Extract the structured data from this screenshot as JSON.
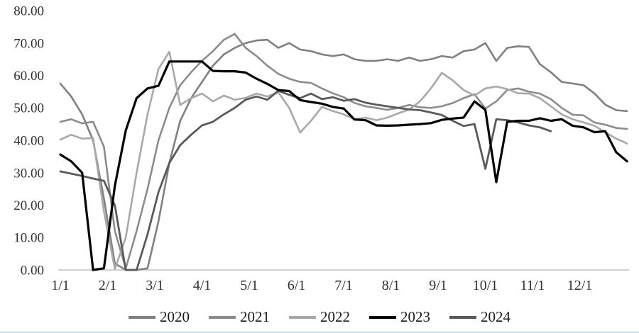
{
  "chart_data": {
    "type": "line",
    "title": "",
    "xlabel": "",
    "ylabel": "",
    "ylim": [
      0,
      80
    ],
    "y_tick_step": 10,
    "grid": "none",
    "axis_baseline_color": "#c0c0c0",
    "legend_position": "bottom",
    "x_frequency": "weekly",
    "x_range": [
      "1/1",
      "12/31"
    ],
    "y_tick_labels": [
      "80.00",
      "70.00",
      "60.00",
      "50.00",
      "40.00",
      "30.00",
      "20.00",
      "10.00",
      "0.00"
    ],
    "x_tick_labels": [
      "1/1",
      "2/1",
      "3/1",
      "4/1",
      "5/1",
      "6/1",
      "7/1",
      "8/1",
      "9/1",
      "10/1",
      "11/1",
      "12/1"
    ],
    "series": [
      {
        "name": "2020",
        "color": "#808080",
        "stroke_width": 2.6,
        "values": [
          57.5,
          53.5,
          48,
          40,
          22,
          2,
          0,
          0,
          0.5,
          15,
          33,
          46,
          53,
          58,
          63,
          66.5,
          68.5,
          70,
          70.8,
          71,
          68.5,
          70,
          68,
          67.5,
          66.5,
          66,
          66.5,
          65,
          64.5,
          64.5,
          65,
          64.5,
          65.5,
          64.5,
          65,
          66,
          65.5,
          67.5,
          68,
          70,
          64.5,
          68.5,
          69,
          68.8,
          63.5,
          61,
          58,
          57.5,
          57,
          54.5,
          51,
          49.3,
          49
        ]
      },
      {
        "name": "2021",
        "color": "#8c8c8c",
        "stroke_width": 2.6,
        "values": [
          45.7,
          46.5,
          45.2,
          45.7,
          38,
          12,
          0.5,
          12,
          25,
          40,
          50,
          57,
          61,
          64.5,
          67.5,
          71,
          72.8,
          68.5,
          66,
          63,
          60.5,
          59,
          58,
          57.7,
          56,
          54.5,
          53.3,
          51.5,
          50.5,
          50,
          49.4,
          50,
          50.9,
          50.2,
          50,
          50.5,
          51.5,
          53,
          54.2,
          49.8,
          52,
          55.5,
          56,
          55,
          54.4,
          52.7,
          50,
          47.9,
          47.7,
          45.5,
          44.8,
          43.8,
          43.5
        ]
      },
      {
        "name": "2022",
        "color": "#a8a8a8",
        "stroke_width": 2.6,
        "values": [
          40.2,
          41.7,
          40.5,
          40.7,
          18,
          0.3,
          10,
          30,
          48,
          62,
          67.3,
          50.9,
          53,
          54.4,
          52,
          53.8,
          52.5,
          53.1,
          54.4,
          53.5,
          54.8,
          50,
          42.4,
          46,
          50.3,
          49,
          48,
          46.5,
          47,
          46.2,
          47,
          48.3,
          49.5,
          52,
          56,
          60.8,
          58.5,
          55.5,
          53.8,
          56,
          56.6,
          55.8,
          54.5,
          54.4,
          53,
          50.5,
          48,
          46.5,
          45.5,
          44.5,
          42.5,
          40.5,
          39
        ]
      },
      {
        "name": "2023",
        "color": "#000000",
        "stroke_width": 3.2,
        "values": [
          35.6,
          33.5,
          30,
          0,
          0.5,
          26,
          43,
          53,
          56,
          56.8,
          64.3,
          64.3,
          64.3,
          64.3,
          61.4,
          61.3,
          61.3,
          60.9,
          59,
          57.4,
          55.5,
          55.2,
          52.4,
          51.8,
          51.3,
          50.3,
          49.8,
          46.4,
          46.2,
          44.6,
          44.5,
          44.6,
          44.8,
          45,
          45.3,
          46.3,
          46.7,
          47,
          52,
          49.4,
          27.1,
          45.7,
          46,
          46,
          46.8,
          46,
          46.5,
          44.5,
          44,
          42.5,
          42.8,
          36.3,
          33.5
        ]
      },
      {
        "name": "2024",
        "color": "#5a5a5a",
        "stroke_width": 2.8,
        "values": [
          30.4,
          29.7,
          29,
          28.2,
          27.5,
          19.9,
          0,
          0,
          11,
          24,
          33,
          38.5,
          41.7,
          44.6,
          45.7,
          48,
          50,
          52.5,
          53.5,
          52.5,
          55.3,
          54,
          53,
          54.4,
          52.7,
          53.3,
          52.2,
          52.7,
          51.6,
          51,
          50.5,
          50,
          49.5,
          49.3,
          48.6,
          47.8,
          46,
          44.4,
          45,
          31.2,
          46.5,
          46.2,
          45.5,
          44.6,
          44,
          42.8
        ]
      }
    ]
  },
  "page": {
    "background": "#ffffff",
    "bottom_strip_color": "#c5d9f1"
  }
}
